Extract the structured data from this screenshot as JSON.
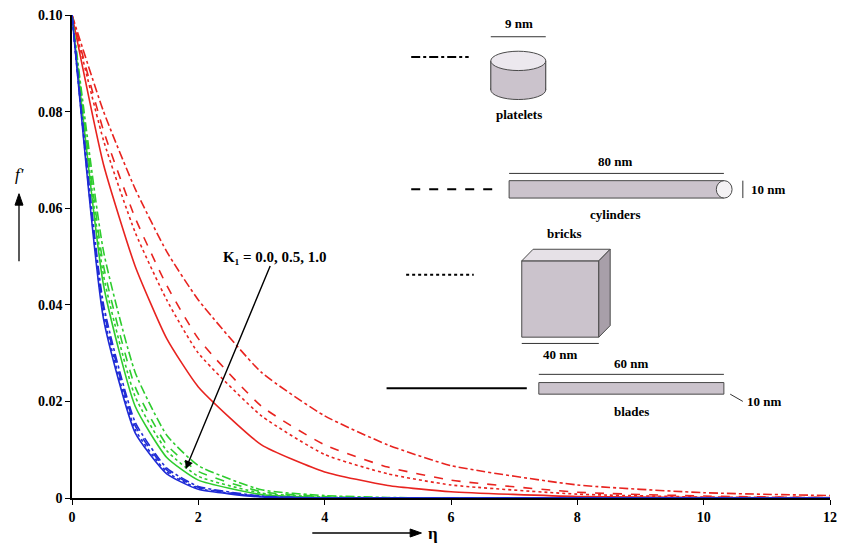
{
  "chart_data": {
    "type": "line",
    "x_label": "η",
    "y_label": "f'",
    "xlim": [
      0,
      12
    ],
    "xticks": [
      0,
      2,
      4,
      6,
      8,
      10,
      12
    ],
    "ylim": [
      0,
      0.1
    ],
    "yticks": [
      0,
      0.02,
      0.04,
      0.06,
      0.08,
      {
        "value": 0.1,
        "label": "0.10"
      }
    ],
    "grid": false,
    "annotation": "K₁ = 0.0, 0.5, 1.0",
    "key": [
      {
        "name": "platelets",
        "line_style": "dashdot",
        "dimensions": [
          "9 nm"
        ]
      },
      {
        "name": "cylinders",
        "line_style": "dash",
        "dimensions": [
          "80 nm",
          "10 nm"
        ]
      },
      {
        "name": "bricks",
        "line_style": "dot",
        "dimensions": [
          "40 nm"
        ]
      },
      {
        "name": "blades",
        "line_style": "solid",
        "dimensions": [
          "60 nm",
          "10 nm"
        ]
      }
    ],
    "x": [
      0,
      0.5,
      1,
      1.5,
      2,
      3,
      4,
      5,
      6,
      8,
      10,
      12
    ],
    "series": [
      {
        "name": "blades",
        "color": "#e8231f",
        "line_style": "solid",
        "values": [
          0.1,
          0.069,
          0.048,
          0.033,
          0.023,
          0.011,
          0.0054,
          0.0026,
          0.0013,
          0.0003,
          0.0001,
          0
        ]
      },
      {
        "name": "bricks",
        "color": "#e8231f",
        "line_style": "dot",
        "values": [
          0.1,
          0.074,
          0.055,
          0.041,
          0.03,
          0.017,
          0.009,
          0.005,
          0.0027,
          0.0008,
          0.0002,
          0.0001
        ]
      },
      {
        "name": "cylinders",
        "color": "#e8231f",
        "line_style": "dash",
        "values": [
          0.1,
          0.076,
          0.058,
          0.044,
          0.033,
          0.019,
          0.011,
          0.0064,
          0.0037,
          0.0012,
          0.0004,
          0.0001
        ]
      },
      {
        "name": "platelets",
        "color": "#e8231f",
        "line_style": "dashdot",
        "values": [
          0.1,
          0.08,
          0.064,
          0.051,
          0.041,
          0.026,
          0.017,
          0.011,
          0.0067,
          0.0027,
          0.0011,
          0.0005
        ]
      },
      {
        "name": "blades",
        "color": "#2ecc2e",
        "line_style": "solid",
        "values": [
          0.1,
          0.044,
          0.019,
          0.0084,
          0.0037,
          0.0007,
          0.0001,
          0,
          0,
          0,
          0,
          0
        ]
      },
      {
        "name": "bricks",
        "color": "#2ecc2e",
        "line_style": "dot",
        "values": [
          0.1,
          0.046,
          0.021,
          0.0098,
          0.0045,
          0.001,
          0.0002,
          0,
          0,
          0,
          0,
          0
        ]
      },
      {
        "name": "cylinders",
        "color": "#2ecc2e",
        "line_style": "dash",
        "values": [
          0.1,
          0.048,
          0.023,
          0.011,
          0.0055,
          0.0013,
          0.0003,
          0,
          0,
          0,
          0,
          0
        ]
      },
      {
        "name": "platelets",
        "color": "#2ecc2e",
        "line_style": "dashdot",
        "values": [
          0.1,
          0.051,
          0.026,
          0.013,
          0.0067,
          0.0017,
          0.0005,
          0.0001,
          0,
          0,
          0,
          0
        ]
      },
      {
        "name": "blades",
        "color": "#1f2bd6",
        "line_style": "solid",
        "values": [
          0.1,
          0.037,
          0.0135,
          0.005,
          0.0018,
          0.0002,
          0,
          0,
          0,
          0,
          0,
          0
        ]
      },
      {
        "name": "bricks",
        "color": "#1f2bd6",
        "line_style": "dot",
        "values": [
          0.1,
          0.038,
          0.0142,
          0.0054,
          0.002,
          0.0003,
          0,
          0,
          0,
          0,
          0,
          0
        ]
      },
      {
        "name": "cylinders",
        "color": "#1f2bd6",
        "line_style": "dash",
        "values": [
          0.1,
          0.039,
          0.015,
          0.0058,
          0.0022,
          0.0003,
          0,
          0,
          0,
          0,
          0,
          0
        ]
      },
      {
        "name": "platelets",
        "color": "#1f2bd6",
        "line_style": "dashdot",
        "values": [
          0.1,
          0.04,
          0.0157,
          0.0062,
          0.0024,
          0.0004,
          0,
          0,
          0,
          0,
          0,
          0
        ]
      }
    ]
  }
}
